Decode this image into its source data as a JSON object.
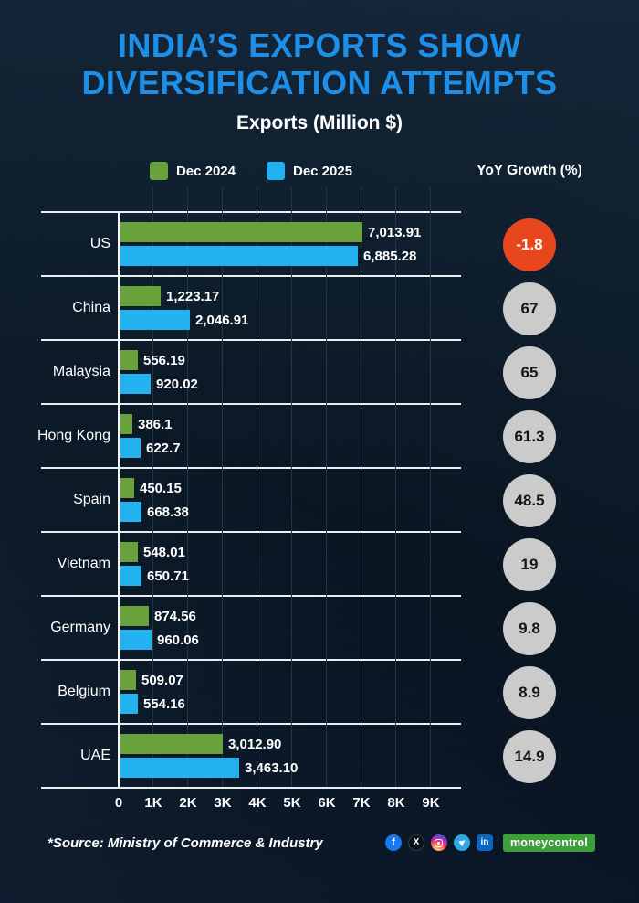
{
  "title": {
    "line1": "INDIA’S EXPORTS SHOW",
    "line2": "DIVERSIFICATION ATTEMPTS"
  },
  "subtitle": "Exports (Million $)",
  "legend": {
    "items": [
      {
        "label": "Dec 2024",
        "color": "#69a23b"
      },
      {
        "label": "Dec 2025",
        "color": "#23b2f0"
      }
    ],
    "yoy_header": "YoY Growth (%)"
  },
  "chart_data": {
    "type": "bar",
    "orientation": "horizontal",
    "title": "Exports (Million $)",
    "categories": [
      "US",
      "China",
      "Malaysia",
      "Hong Kong",
      "Spain",
      "Vietnam",
      "Germany",
      "Belgium",
      "UAE"
    ],
    "series": [
      {
        "name": "Dec 2024",
        "color": "#69a23b",
        "values": [
          7013.91,
          1223.17,
          556.19,
          386.1,
          450.15,
          548.01,
          874.56,
          509.07,
          3012.9
        ],
        "labels": [
          "7,013.91",
          "1,223.17",
          "556.19",
          "386.1",
          "450.15",
          "548.01",
          "874.56",
          "509.07",
          "3,012.90"
        ]
      },
      {
        "name": "Dec 2025",
        "color": "#23b2f0",
        "values": [
          6885.28,
          2046.91,
          920.02,
          622.7,
          668.38,
          650.71,
          960.06,
          554.16,
          3463.1
        ],
        "labels": [
          "6,885.28",
          "2,046.91",
          "920.02",
          "622.7",
          "668.38",
          "650.71",
          "960.06",
          "554.16",
          "3,463.10"
        ]
      }
    ],
    "yoy": [
      {
        "label": "-1.8",
        "negative": true
      },
      {
        "label": "67"
      },
      {
        "label": "65"
      },
      {
        "label": "61.3"
      },
      {
        "label": "48.5"
      },
      {
        "label": "19"
      },
      {
        "label": "9.8"
      },
      {
        "label": "8.9"
      },
      {
        "label": "14.9"
      }
    ],
    "x_ticks": [
      "0",
      "1K",
      "2K",
      "3K",
      "4K",
      "5K",
      "6K",
      "7K",
      "8K",
      "9K"
    ],
    "xlim": [
      0,
      9600
    ],
    "grid": true,
    "legend_position": "top"
  },
  "footer": {
    "source": "*Source: Ministry of Commerce & Industry"
  },
  "social": {
    "icons": [
      {
        "name": "facebook-icon",
        "glyph": "f",
        "color": "#1877f2"
      },
      {
        "name": "x-icon",
        "glyph": "X",
        "color": "#0b1118"
      },
      {
        "name": "instagram-icon",
        "glyph": "",
        "color": "gradient"
      },
      {
        "name": "telegram-icon",
        "glyph": "▶",
        "color": "#2aa9e6"
      },
      {
        "name": "linkedin-icon",
        "glyph": "in",
        "color": "#0a66c2"
      }
    ],
    "brand": "moneycontrol"
  },
  "colors": {
    "accent_blue": "#1e8fe8",
    "bar_green": "#69a23b",
    "bar_blue": "#23b2f0",
    "yoy_negative_bg": "#e8471d",
    "yoy_positive_bg": "#cbcbcb"
  }
}
